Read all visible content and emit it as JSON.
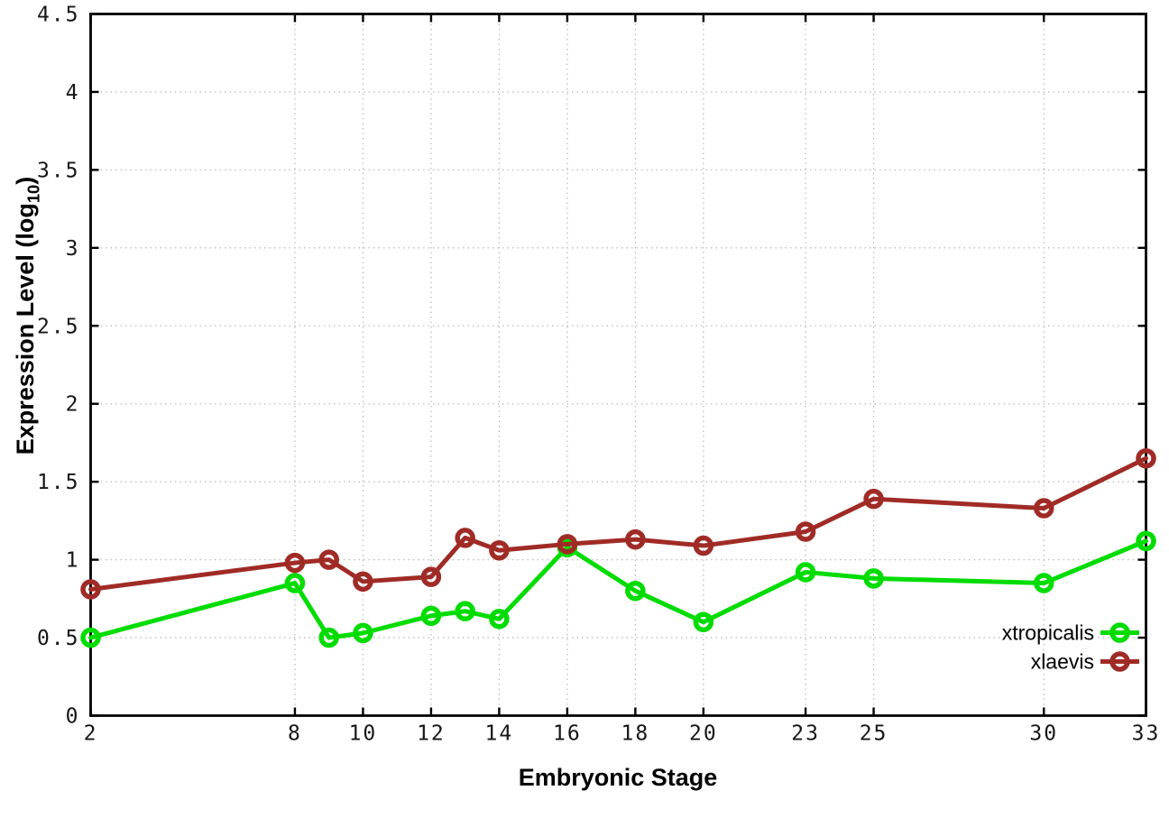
{
  "chart_data": {
    "type": "line",
    "title": "",
    "xlabel": "Embryonic Stage",
    "ylabel": "Expression Level (log10)",
    "ylabel_parts": {
      "main": "Expression Level (log",
      "sub": "10",
      "end": ")"
    },
    "xlim": [
      2,
      33
    ],
    "ylim": [
      0,
      4.5
    ],
    "grid": true,
    "grid_style": "dotted",
    "marker": "open-circle",
    "x_ticks": {
      "values": [
        2,
        8,
        10,
        12,
        14,
        16,
        18,
        20,
        23,
        25,
        30,
        33
      ],
      "labels": [
        "2",
        "8",
        "10",
        "12",
        "14",
        "16",
        "18",
        "20",
        "23",
        "25",
        "30",
        "33"
      ]
    },
    "y_ticks": {
      "values": [
        0,
        0.5,
        1,
        1.5,
        2,
        2.5,
        3,
        3.5,
        4,
        4.5
      ],
      "labels": [
        "0",
        "0.5",
        "1",
        "1.5",
        "2",
        "2.5",
        "3",
        "3.5",
        "4",
        "4.5"
      ]
    },
    "x": [
      2,
      8,
      9,
      10,
      12,
      13,
      14,
      16,
      18,
      20,
      23,
      25,
      30,
      33
    ],
    "series": [
      {
        "name": "xtropicalis",
        "color": "#00dc00",
        "values": [
          0.5,
          0.85,
          0.5,
          0.53,
          0.64,
          0.67,
          0.62,
          1.08,
          0.8,
          0.6,
          0.92,
          0.88,
          0.85,
          1.12
        ]
      },
      {
        "name": "xlaevis",
        "color": "#a02b26",
        "values": [
          0.81,
          0.98,
          1.0,
          0.86,
          0.89,
          1.14,
          1.06,
          1.1,
          1.13,
          1.09,
          1.18,
          1.39,
          1.33,
          1.65
        ]
      }
    ],
    "legend": {
      "position": "inside-right",
      "entries": [
        "xtropicalis",
        "xlaevis"
      ]
    },
    "colors": {
      "background": "#ffffff",
      "axis": "#000000",
      "grid": "#bdbdbd",
      "tick_label": "#161616"
    }
  }
}
